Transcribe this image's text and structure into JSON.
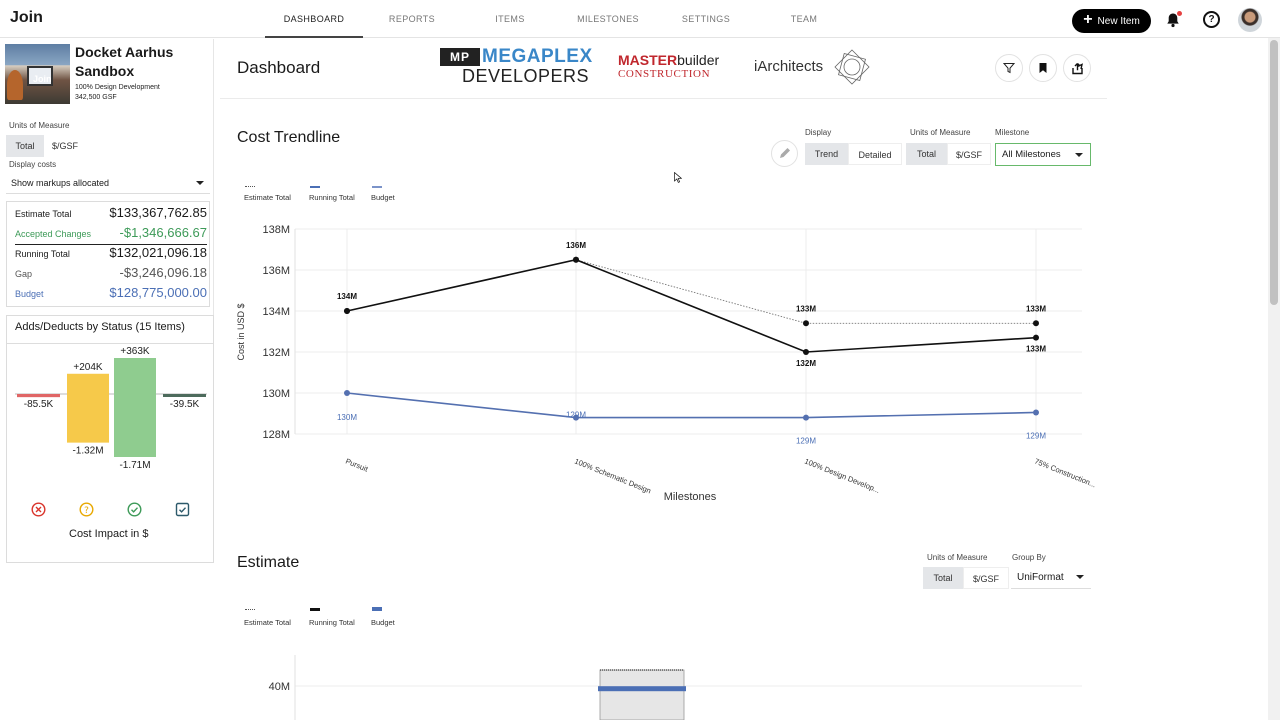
{
  "app": {
    "brand": "Join"
  },
  "nav": [
    {
      "label": "DASHBOARD",
      "active": true
    },
    {
      "label": "REPORTS",
      "active": false
    },
    {
      "label": "ITEMS",
      "active": false
    },
    {
      "label": "MILESTONES",
      "active": false
    },
    {
      "label": "SETTINGS",
      "active": false
    },
    {
      "label": "TEAM",
      "active": false
    }
  ],
  "topbar": {
    "new_item_label": "New Item",
    "icons": [
      "plus-icon",
      "bell-icon",
      "help-icon",
      "avatar"
    ]
  },
  "project": {
    "name": "Docket Aarhus Sandbox",
    "image_label": "Join",
    "phase": "100% Design Development",
    "area": "342,500 GSF"
  },
  "sidebar": {
    "uom_label": "Units of Measure",
    "uom_options": [
      "Total",
      "$/GSF"
    ],
    "uom_selected": "Total",
    "display_costs_label": "Display costs",
    "display_costs_value": "Show markups allocated",
    "costs": [
      {
        "label": "Estimate Total",
        "value": "$133,367,762.85",
        "color": "#222222"
      },
      {
        "label": "Accepted Changes",
        "value": "-$1,346,666.67",
        "color": "#3d9a58"
      },
      {
        "label": "Running Total",
        "value": "$132,021,096.18",
        "color": "#222222"
      },
      {
        "label": "Gap",
        "value": "-$3,246,096.18",
        "color": "#555555"
      },
      {
        "label": "Budget",
        "value": "$128,775,000.00",
        "color": "#4b6fb5"
      }
    ],
    "adds_title": "Adds/Deducts by Status (15 Items)",
    "adds_bars": [
      {
        "status": "rejected",
        "add": 0,
        "add_label": "",
        "deduct": -85.5,
        "deduct_label": "-85.5K",
        "color": "#e06666",
        "icon": "x-circle-icon"
      },
      {
        "status": "pending",
        "add": 204,
        "add_label": "+204K",
        "deduct": -1320,
        "deduct_label": "-1.32M",
        "color": "#f6c94a",
        "icon": "question-circle-icon"
      },
      {
        "status": "accepted",
        "add": 363,
        "add_label": "+363K",
        "deduct": -1710,
        "deduct_label": "-1.71M",
        "color": "#8fcc8f",
        "icon": "check-circle-icon"
      },
      {
        "status": "incorporated",
        "add": 0,
        "add_label": "",
        "deduct": -39.5,
        "deduct_label": "-39.5K",
        "color": "#4d6b5c",
        "icon": "check-square-icon"
      }
    ],
    "adds_footer": "Cost Impact in $"
  },
  "header": {
    "title": "Dashboard",
    "logos": {
      "mp_box": "MP",
      "megaplex": "MEGAPLEX",
      "developers": "DEVELOPERS",
      "master": "MASTER",
      "builder": "builder",
      "construction": "CONSTRUCTION",
      "iarchitects": "iArchitects"
    },
    "actions": [
      "filter-icon",
      "bookmark-icon",
      "share-icon"
    ]
  },
  "trendline": {
    "title": "Cost Trendline",
    "display_label": "Display",
    "display_options": [
      "Trend",
      "Detailed"
    ],
    "display_selected": "Trend",
    "uom_label": "Units of Measure",
    "uom_options": [
      "Total",
      "$/GSF"
    ],
    "uom_selected": "Total",
    "milestone_label": "Milestone",
    "milestone_value": "All Milestones",
    "legend": [
      {
        "name": "Estimate Total",
        "color": "#555555",
        "style": "dotted"
      },
      {
        "name": "Running Total",
        "color": "#4b6fb5",
        "style": "solid"
      },
      {
        "name": "Budget",
        "color": "#7b93c9",
        "style": "solid"
      }
    ]
  },
  "chart_data": [
    {
      "type": "line",
      "title": "Cost Trendline",
      "xlabel": "Milestones",
      "ylabel": "Cost in USD $",
      "categories": [
        "Pursuit",
        "100% Schematic Design",
        "100% Design Develop...",
        "75% Construction..."
      ],
      "ylim": [
        128,
        138
      ],
      "y_ticks": [
        "128M",
        "130M",
        "132M",
        "134M",
        "136M",
        "138M"
      ],
      "y_tick_values": [
        128,
        130,
        132,
        134,
        136,
        138
      ],
      "grid": true,
      "series": [
        {
          "name": "Estimate Total",
          "values": [
            134,
            136.5,
            133.4,
            133.4
          ],
          "labels": [
            "134M",
            "136M",
            "133M",
            "133M"
          ],
          "color": "#777777",
          "dashed": true
        },
        {
          "name": "Running Total",
          "values": [
            134,
            136.5,
            132,
            132.7
          ],
          "labels": [
            "",
            "",
            "132M",
            "133M"
          ],
          "color": "#111111",
          "dashed": false
        },
        {
          "name": "Budget",
          "values": [
            130,
            128.8,
            128.8,
            129.05
          ],
          "labels": [
            "130M",
            "129M",
            "129M",
            "129M"
          ],
          "color": "#5470b0",
          "dashed": false
        }
      ]
    },
    {
      "type": "bar",
      "title": "Estimate",
      "y_ticks": [
        "40M"
      ],
      "categories": [
        ""
      ],
      "series": [
        {
          "name": "Estimate Total",
          "values": [
            45
          ]
        },
        {
          "name": "Budget",
          "values": [
            39
          ]
        }
      ]
    }
  ],
  "estimate": {
    "title": "Estimate",
    "uom_label": "Units of Measure",
    "uom_options": [
      "Total",
      "$/GSF"
    ],
    "uom_selected": "Total",
    "group_by_label": "Group By",
    "group_by_value": "UniFormat",
    "legend": [
      {
        "name": "Estimate Total",
        "color": "#555555",
        "style": "dotted"
      },
      {
        "name": "Running Total",
        "color": "#111111",
        "style": "solid"
      },
      {
        "name": "Budget",
        "color": "#4b6fb5",
        "style": "solid"
      }
    ]
  }
}
